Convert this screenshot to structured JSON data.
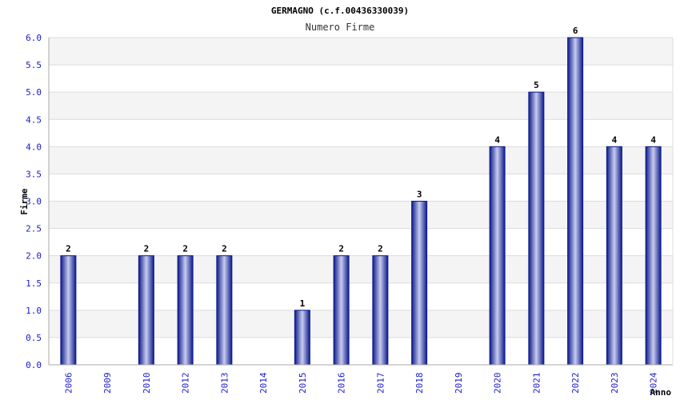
{
  "colors": {
    "band_light": "#f4f4f4",
    "band_white": "#ffffff",
    "grid": "#dcdcdc",
    "bar_dark": "#0c1a8c",
    "bar_light": "#c8ccee",
    "tick_text": "#1a1acc"
  },
  "chart_data": {
    "type": "bar",
    "title": "GERMAGNO (c.f.00436330039)",
    "subtitle": "Numero Firme",
    "xlabel": "Anno",
    "ylabel": "Firme",
    "ylim": [
      0,
      6
    ],
    "yticks": [
      "0.0",
      "0.5",
      "1.0",
      "1.5",
      "2.0",
      "2.5",
      "3.0",
      "3.5",
      "4.0",
      "4.5",
      "5.0",
      "5.5",
      "6.0"
    ],
    "categories": [
      "2006",
      "2009",
      "2010",
      "2012",
      "2013",
      "2014",
      "2015",
      "2016",
      "2017",
      "2018",
      "2019",
      "2020",
      "2021",
      "2022",
      "2023",
      "2024"
    ],
    "values": [
      2,
      0,
      2,
      2,
      2,
      0,
      1,
      2,
      2,
      3,
      0,
      4,
      5,
      6,
      4,
      4
    ],
    "data_labels": [
      "2",
      "",
      "2",
      "2",
      "2",
      "",
      "1",
      "2",
      "2",
      "3",
      "",
      "4",
      "5",
      "6",
      "4",
      "4"
    ],
    "grid": true,
    "legend": "none"
  }
}
